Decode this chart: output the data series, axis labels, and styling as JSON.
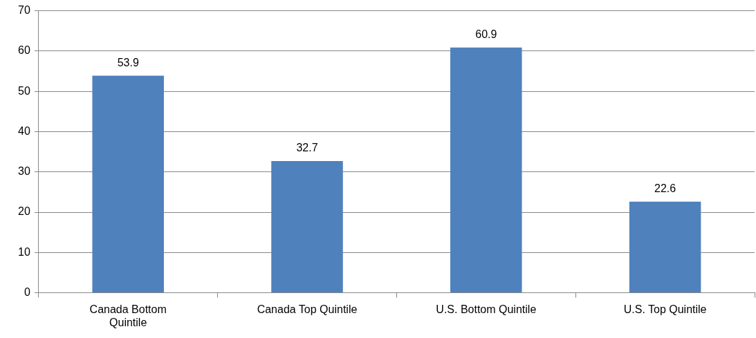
{
  "chart_data": {
    "type": "bar",
    "categories": [
      "Canada Bottom Quintile",
      "Canada Top Quintile",
      "U.S. Bottom Quintile",
      "U.S. Top Quintile"
    ],
    "values": [
      53.9,
      32.7,
      60.9,
      22.6
    ],
    "color": "#4f81bd",
    "ylim": [
      0,
      70
    ],
    "yticks": [
      0,
      10,
      20,
      30,
      40,
      50,
      60,
      70
    ],
    "grid": "y",
    "data_labels": true,
    "legend": false
  }
}
